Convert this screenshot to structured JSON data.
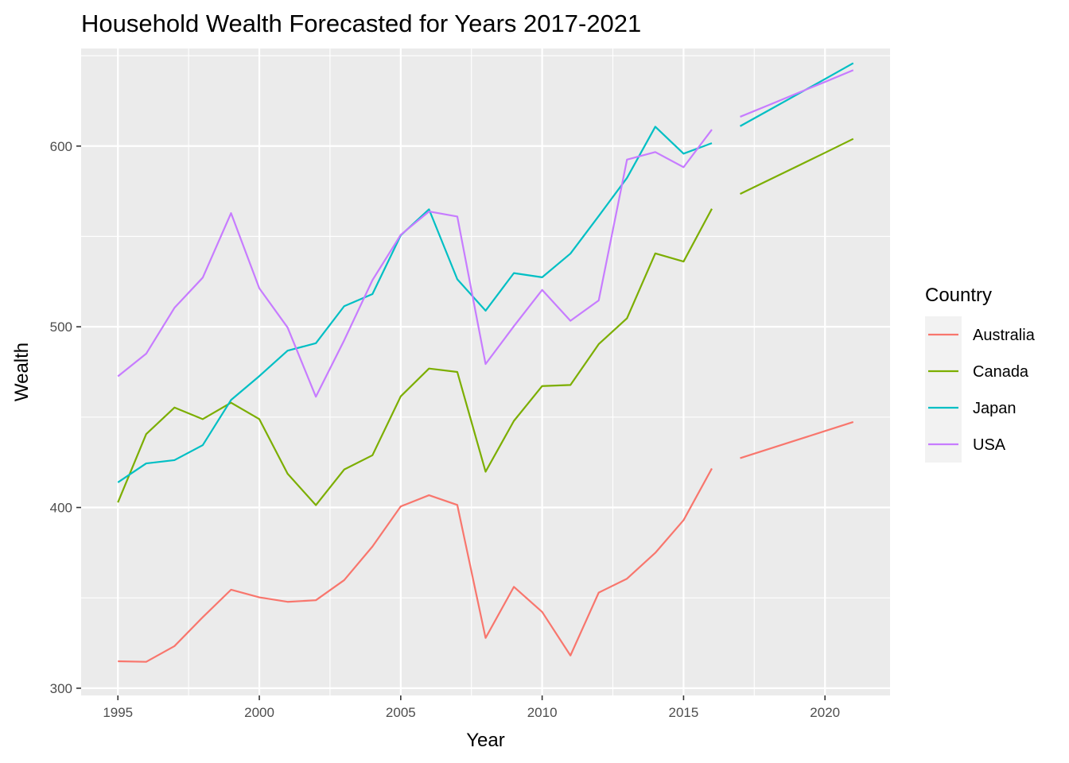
{
  "chart_data": {
    "type": "line",
    "title": "Household Wealth Forecasted for Years 2017-2021",
    "xlabel": "Year",
    "ylabel": "Wealth",
    "xlim": [
      1993.7,
      2022.3
    ],
    "ylim": [
      296,
      654
    ],
    "x_ticks": [
      1995,
      2000,
      2005,
      2010,
      2015,
      2020
    ],
    "y_ticks": [
      300,
      400,
      500,
      600
    ],
    "grid": true,
    "legend": {
      "title": "Country",
      "position": "right"
    },
    "historical_years": [
      1995,
      1996,
      1997,
      1998,
      1999,
      2000,
      2001,
      2002,
      2003,
      2004,
      2005,
      2006,
      2007,
      2008,
      2009,
      2010,
      2011,
      2012,
      2013,
      2014,
      2015,
      2016
    ],
    "forecast_years": [
      2017,
      2018,
      2019,
      2020,
      2021
    ],
    "series": [
      {
        "name": "Australia",
        "color": "#F8766D",
        "historical": [
          314.9,
          314.6,
          323.3,
          339.3,
          354.5,
          350.3,
          347.8,
          348.7,
          359.8,
          378.4,
          400.6,
          406.8,
          401.4,
          327.8,
          356.1,
          342.2,
          318.1,
          352.9,
          360.6,
          374.9,
          393,
          421.6
        ],
        "forecast": [
          427.3,
          432.3,
          437.3,
          442.3,
          447.3
        ]
      },
      {
        "name": "Canada",
        "color": "#7CAE00",
        "historical": [
          402.8,
          440.6,
          455.3,
          448.9,
          458,
          448.9,
          418.7,
          401.3,
          421,
          428.9,
          461.5,
          476.9,
          475,
          419.8,
          447.9,
          467.2,
          467.8,
          490.4,
          504.7,
          540.6,
          536.1,
          565.3
        ],
        "forecast": [
          573.5,
          581.1,
          588.7,
          596.3,
          604
        ]
      },
      {
        "name": "Japan",
        "color": "#00BFC4",
        "historical": [
          413.9,
          424.4,
          426.2,
          434.5,
          459.5,
          472.7,
          486.8,
          490.9,
          511.4,
          518.1,
          550.6,
          565,
          526.3,
          508.9,
          529.7,
          527.4,
          540.5,
          561.3,
          582.4,
          610.7,
          595.8,
          601.6
        ],
        "forecast": [
          611,
          619.7,
          628.4,
          637.1,
          645.9
        ]
      },
      {
        "name": "USA",
        "color": "#C77CFF",
        "historical": [
          472.6,
          485.1,
          510.5,
          527.2,
          562.9,
          521.3,
          499.6,
          461.3,
          492.5,
          525.8,
          550.9,
          563.8,
          561,
          479.4,
          500.3,
          520.4,
          503.3,
          514.6,
          592.5,
          596.7,
          588.3,
          609.1
        ],
        "forecast": [
          616.2,
          622.6,
          629.1,
          635.5,
          642
        ]
      }
    ]
  }
}
